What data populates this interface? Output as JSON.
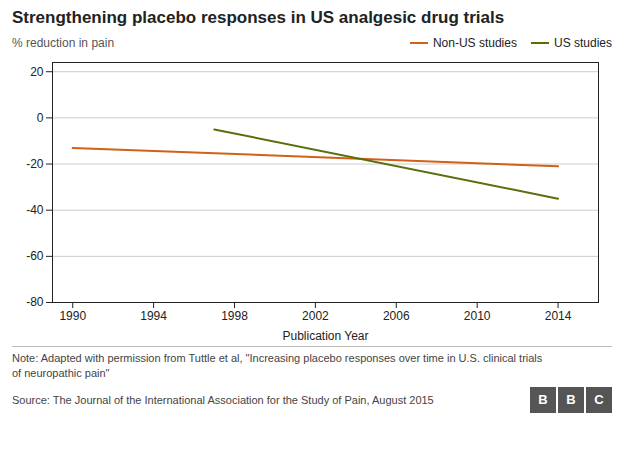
{
  "chart_data": {
    "type": "line",
    "title": "Strengthening placebo responses in US analgesic drug trials",
    "ylabel": "% reduction in pain",
    "xlabel": "Publication Year",
    "note": "Note: Adapted with permission from Tuttle et al, \"Increasing placebo responses over time in U.S. clinical trials\nof neuropathic pain\"",
    "source": "Source: The Journal of the International Association for the Study of Pain, August 2015",
    "logo": "BBC",
    "series": [
      {
        "name": "Non-US studies",
        "color": "#d45f16",
        "x": [
          1990,
          2014
        ],
        "values": [
          -13,
          -21
        ]
      },
      {
        "name": "US studies",
        "color": "#5a6e0a",
        "x": [
          1997,
          2014
        ],
        "values": [
          -5,
          -35
        ]
      }
    ],
    "xlim": [
      1989,
      2016
    ],
    "ylim": [
      -80,
      24
    ],
    "xticks": [
      1990,
      1994,
      1998,
      2002,
      2006,
      2010,
      2014
    ],
    "yticks": [
      20,
      0,
      -20,
      -40,
      -60,
      -80
    ],
    "grid": true,
    "legend": "upper right"
  }
}
